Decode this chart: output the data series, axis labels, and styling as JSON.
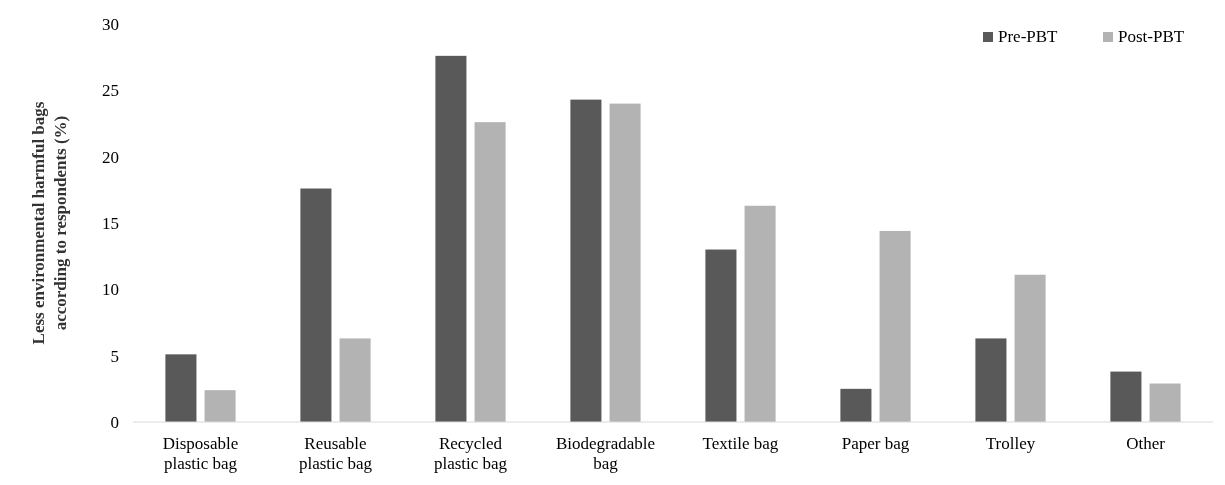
{
  "chart_data": {
    "type": "bar",
    "ylabel": "Less environmental harmful bags according to respondents (%)",
    "categories": [
      "Disposable plastic bag",
      "Reusable plastic bag",
      "Recycled plastic bag",
      "Biodegradable bag",
      "Textile bag",
      "Paper bag",
      "Trolley",
      "Other"
    ],
    "series": [
      {
        "name": "Pre-PBT",
        "color": "#595959",
        "values": [
          5.1,
          17.6,
          27.6,
          24.3,
          13.0,
          2.5,
          6.3,
          3.8
        ]
      },
      {
        "name": "Post-PBT",
        "color": "#b3b3b3",
        "values": [
          2.4,
          6.3,
          22.6,
          24.0,
          16.3,
          14.4,
          11.1,
          2.9
        ]
      }
    ],
    "ylim": [
      0,
      30
    ],
    "yticks": [
      0,
      5,
      10,
      15,
      20,
      25,
      30
    ],
    "grid": false,
    "legend": "top right"
  }
}
